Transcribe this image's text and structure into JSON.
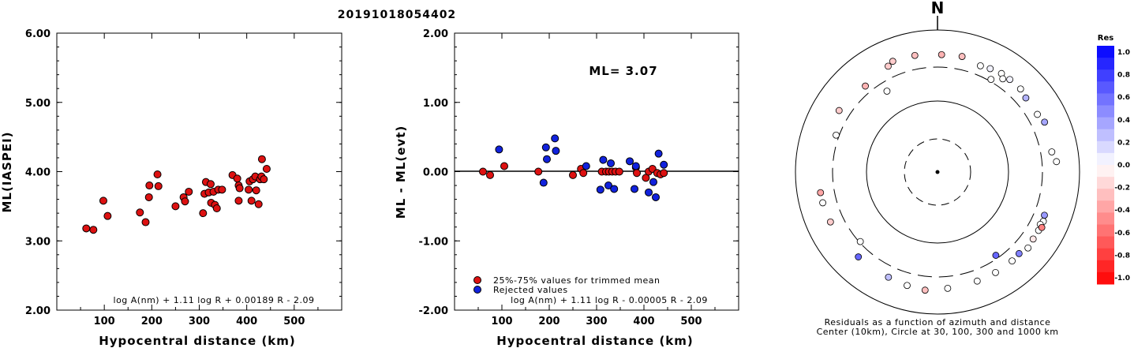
{
  "event_title": "20191018054402",
  "colors": {
    "accepted": "#dd1111",
    "rejected": "#1122dd",
    "positive_residual": "#0000ff",
    "negative_residual": "#ff0000"
  },
  "chart_data": [
    {
      "type": "scatter",
      "xlabel": "Hypocentral distance (km)",
      "ylabel": "ML(IASPEI)",
      "xlim": [
        0,
        600
      ],
      "ylim": [
        2.0,
        6.0
      ],
      "xticks": [
        "100",
        "200",
        "300",
        "400",
        "500"
      ],
      "yticks": [
        "2.00",
        "3.00",
        "4.00",
        "5.00",
        "6.00"
      ],
      "formula": "log A(nm) + 1.11 log R + 0.00189 R - 2.09",
      "series": [
        {
          "points": [
            [
              62,
              3.18
            ],
            [
              77,
              3.16
            ],
            [
              98,
              3.58
            ],
            [
              107,
              3.36
            ],
            [
              175,
              3.41
            ],
            [
              187,
              3.27
            ],
            [
              194,
              3.63
            ],
            [
              195,
              3.8
            ],
            [
              212,
              3.96
            ],
            [
              214,
              3.79
            ],
            [
              250,
              3.5
            ],
            [
              267,
              3.63
            ],
            [
              270,
              3.57
            ],
            [
              278,
              3.71
            ],
            [
              308,
              3.4
            ],
            [
              311,
              3.68
            ],
            [
              314,
              3.85
            ],
            [
              320,
              3.7
            ],
            [
              324,
              3.82
            ],
            [
              325,
              3.55
            ],
            [
              330,
              3.71
            ],
            [
              333,
              3.52
            ],
            [
              337,
              3.47
            ],
            [
              340,
              3.74
            ],
            [
              348,
              3.74
            ],
            [
              370,
              3.95
            ],
            [
              380,
              3.9
            ],
            [
              383,
              3.8
            ],
            [
              383,
              3.58
            ],
            [
              385,
              3.76
            ],
            [
              404,
              3.74
            ],
            [
              406,
              3.86
            ],
            [
              410,
              3.58
            ],
            [
              413,
              3.89
            ],
            [
              418,
              3.93
            ],
            [
              420,
              3.73
            ],
            [
              425,
              3.53
            ],
            [
              428,
              3.89
            ],
            [
              431,
              3.93
            ],
            [
              432,
              4.18
            ],
            [
              436,
              3.89
            ],
            [
              442,
              4.04
            ]
          ]
        }
      ]
    },
    {
      "type": "scatter",
      "xlabel": "Hypocentral distance (km)",
      "ylabel": "ML - ML(evt)",
      "xlim": [
        0,
        600
      ],
      "ylim": [
        -2.0,
        2.0
      ],
      "xticks": [
        "100",
        "200",
        "300",
        "400",
        "500"
      ],
      "yticks": [
        "-2.00",
        "-1.00",
        "0.00",
        "1.00",
        "2.00"
      ],
      "ml_label": "ML= 3.07",
      "formula": "log A(nm) + 1.11 log R - 0.00005 R - 2.09",
      "legend": [
        "25%-75% values for trimmed mean",
        "Rejected values"
      ],
      "series": [
        {
          "name": "25%-75% values for trimmed mean",
          "points": [
            [
              60,
              0.0
            ],
            [
              75,
              -0.05
            ],
            [
              105,
              0.08
            ],
            [
              177,
              0.0
            ],
            [
              250,
              -0.05
            ],
            [
              267,
              0.04
            ],
            [
              272,
              -0.02
            ],
            [
              311,
              0.0
            ],
            [
              320,
              0.0
            ],
            [
              326,
              0.0
            ],
            [
              333,
              0.0
            ],
            [
              340,
              0.0
            ],
            [
              348,
              0.0
            ],
            [
              383,
              0.06
            ],
            [
              385,
              -0.02
            ],
            [
              404,
              -0.09
            ],
            [
              410,
              0.0
            ],
            [
              418,
              0.04
            ],
            [
              428,
              -0.02
            ],
            [
              435,
              -0.04
            ],
            [
              442,
              -0.02
            ]
          ]
        },
        {
          "name": "Rejected values",
          "points": [
            [
              94,
              0.32
            ],
            [
              188,
              -0.16
            ],
            [
              193,
              0.35
            ],
            [
              195,
              0.18
            ],
            [
              212,
              0.48
            ],
            [
              214,
              0.3
            ],
            [
              278,
              0.08
            ],
            [
              308,
              -0.26
            ],
            [
              314,
              0.17
            ],
            [
              325,
              -0.2
            ],
            [
              330,
              0.12
            ],
            [
              337,
              -0.25
            ],
            [
              370,
              0.15
            ],
            [
              380,
              -0.25
            ],
            [
              383,
              0.08
            ],
            [
              410,
              -0.3
            ],
            [
              420,
              -0.15
            ],
            [
              425,
              -0.37
            ],
            [
              431,
              0.26
            ],
            [
              442,
              0.1
            ]
          ]
        }
      ]
    },
    {
      "type": "polar-scatter",
      "north_label": "N",
      "caption": [
        "Residuals as a function of azimuth and distance",
        "Center (10km), Circle at 30, 100, 300 and 1000 km"
      ],
      "rings_km": [
        30,
        100,
        300,
        1000
      ],
      "points": [
        {
          "azimuth": 2,
          "distance_km": 450,
          "residual": -0.3
        },
        {
          "azimuth": 12,
          "distance_km": 460,
          "residual": -0.25
        },
        {
          "azimuth": 22,
          "distance_km": 410,
          "residual": 0.0
        },
        {
          "azimuth": 27,
          "distance_km": 430,
          "residual": 0.05
        },
        {
          "azimuth": 30,
          "distance_km": 320,
          "residual": 0.0
        },
        {
          "azimuth": 33,
          "distance_km": 450,
          "residual": 0.0
        },
        {
          "azimuth": 35,
          "distance_km": 400,
          "residual": 0.0
        },
        {
          "azimuth": 38,
          "distance_km": 450,
          "residual": 0.05
        },
        {
          "azimuth": 45,
          "distance_km": 450,
          "residual": 0.0
        },
        {
          "azimuth": 50,
          "distance_km": 420,
          "residual": 0.3
        },
        {
          "azimuth": 60,
          "distance_km": 420,
          "residual": 0.0
        },
        {
          "azimuth": 65,
          "distance_km": 460,
          "residual": 0.35
        },
        {
          "azimuth": 80,
          "distance_km": 430,
          "residual": 0.0
        },
        {
          "azimuth": 85,
          "distance_km": 480,
          "residual": 0.0
        },
        {
          "azimuth": 112,
          "distance_km": 420,
          "residual": 0.4
        },
        {
          "azimuth": 115,
          "distance_km": 440,
          "residual": 0.0
        },
        {
          "azimuth": 117,
          "distance_km": 420,
          "residual": 0.0
        },
        {
          "azimuth": 120,
          "distance_km": 440,
          "residual": 0.0
        },
        {
          "azimuth": 118,
          "distance_km": 460,
          "residual": -0.5
        },
        {
          "azimuth": 125,
          "distance_km": 440,
          "residual": -0.1
        },
        {
          "azimuth": 130,
          "distance_km": 460,
          "residual": 0.0
        },
        {
          "azimuth": 135,
          "distance_km": 420,
          "residual": 0.5
        },
        {
          "azimuth": 140,
          "distance_km": 430,
          "residual": 0.0
        },
        {
          "azimuth": 150,
          "distance_km": 430,
          "residual": 0.0
        },
        {
          "azimuth": 145,
          "distance_km": 270,
          "residual": 0.6
        },
        {
          "azimuth": 160,
          "distance_km": 430,
          "residual": 0.0
        },
        {
          "azimuth": 175,
          "distance_km": 440,
          "residual": 0.0
        },
        {
          "azimuth": 186,
          "distance_km": 470,
          "residual": -0.25
        },
        {
          "azimuth": 195,
          "distance_km": 450,
          "residual": 0.0
        },
        {
          "azimuth": 205,
          "distance_km": 430,
          "residual": 0.25
        },
        {
          "azimuth": 223,
          "distance_km": 430,
          "residual": 0.6
        },
        {
          "azimuth": 228,
          "distance_km": 290,
          "residual": 0.0
        },
        {
          "azimuth": 245,
          "distance_km": 460,
          "residual": -0.2
        },
        {
          "azimuth": 255,
          "distance_km": 470,
          "residual": 0.0
        },
        {
          "azimuth": 260,
          "distance_km": 470,
          "residual": -0.35
        },
        {
          "azimuth": 290,
          "distance_km": 330,
          "residual": 0.0
        },
        {
          "azimuth": 302,
          "distance_km": 430,
          "residual": -0.2
        },
        {
          "azimuth": 320,
          "distance_km": 380,
          "residual": -0.3
        },
        {
          "azimuth": 328,
          "distance_km": 220,
          "residual": 0.0
        },
        {
          "azimuth": 335,
          "distance_km": 440,
          "residual": -0.2
        },
        {
          "azimuth": 349,
          "distance_km": 470,
          "residual": -0.25
        },
        {
          "azimuth": 338,
          "distance_km": 480,
          "residual": -0.2
        }
      ]
    }
  ],
  "colorbar": {
    "label": "Res",
    "ticks": [
      "1.0",
      "0.8",
      "0.6",
      "0.4",
      "0.2",
      "0.0",
      "-0.2",
      "-0.4",
      "-0.6",
      "-0.8",
      "-1.0"
    ]
  }
}
